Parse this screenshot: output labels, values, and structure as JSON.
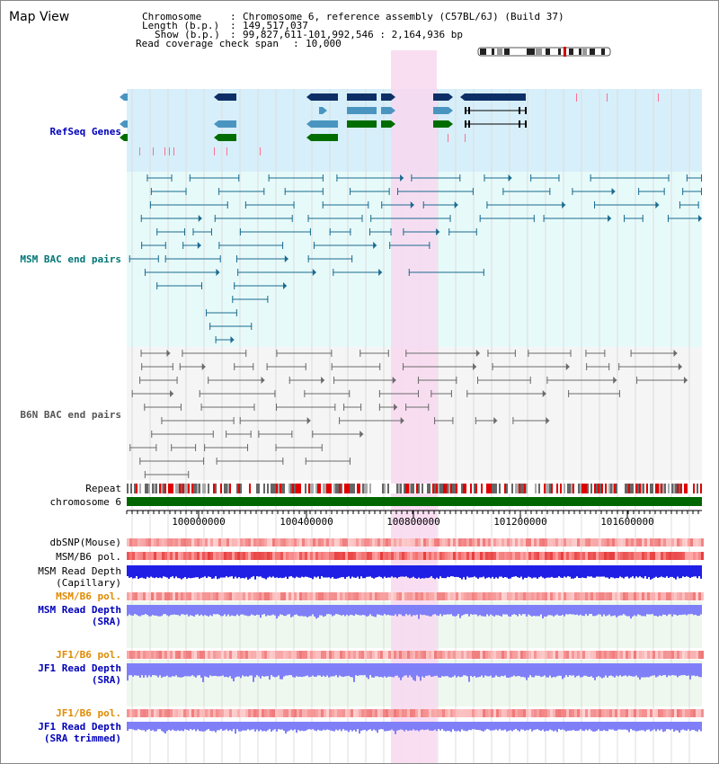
{
  "title": "Map View",
  "header": {
    "chromosome_key": "Chromosome",
    "chromosome_val": "Chromosome 6, reference assembly (C57BL/6J) (Build 37)",
    "length_key": "Length (b.p.)",
    "length_val": "149,517,037",
    "show_key": "Show (b.p.)",
    "show_val": "99,827,611-101,992,546 : 2,164,936 bp",
    "span_key": "Read coverage check span",
    "span_val": "10,000"
  },
  "labels": {
    "refseq": "RefSeq Genes",
    "msm_bac": "MSM BAC end pairs",
    "b6n_bac": "B6N BAC end pairs",
    "repeat": "Repeat",
    "chromosome": "chromosome 6",
    "dbsnp": "dbSNP(Mouse)",
    "msm_b6_pol_1": "MSM/B6 pol.",
    "msm_depth_cap_1": "MSM Read Depth",
    "msm_depth_cap_2": "(Capillary)",
    "msm_b6_pol_2": "MSM/B6 pol.",
    "msm_depth_sra_1": "MSM Read Depth",
    "msm_depth_sra_2": "(SRA)",
    "jf1_pol_1": "JF1/B6 pol.",
    "jf1_depth_sra_1": "JF1 Read Depth",
    "jf1_depth_sra_2": "(SRA)",
    "jf1_pol_2": "JF1/B6 pol.",
    "jf1_depth_trim_1": "JF1 Read Depth",
    "jf1_depth_trim_2": "(SRA trimmed)"
  },
  "ruler": {
    "ticks": [
      "100000000",
      "100400000",
      "100800000",
      "101200000",
      "101600000"
    ]
  },
  "colors": {
    "refseq_bg": "#d7effa",
    "msm_bg": "#e7fafa",
    "b6n_bg": "#f5f5f5",
    "highlight": "#f8d8f0",
    "gene_dark": "#0d2f66",
    "gene_mid": "#4a95c0",
    "gene_green": "#006d00",
    "msm_pair": "#1a6b8f",
    "b6n_pair": "#6a6a6a",
    "chromosome": "#006600",
    "depth_blue": "#1f1fe6",
    "depth_light": "#7f7ff8",
    "pol_label": "#e08a00",
    "refseq_label": "#0000bb",
    "msm_label": "#007575",
    "b6n_label": "#555555"
  }
}
